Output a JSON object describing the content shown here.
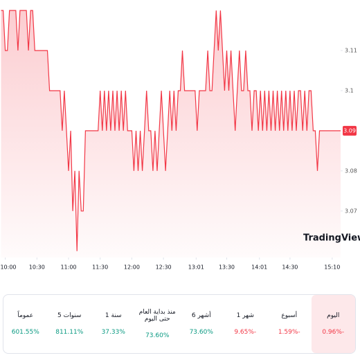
{
  "chart_data": {
    "type": "area",
    "color": "#f23645",
    "watermark": "TradingView",
    "last_value": 3.09,
    "x": [
      596,
      598,
      600,
      602,
      604,
      606,
      608,
      610,
      612,
      614,
      616,
      618,
      620,
      622,
      624,
      626,
      628,
      630,
      632,
      634,
      636,
      638,
      640,
      642,
      644,
      646,
      648,
      650,
      652,
      654,
      656,
      658,
      660,
      662,
      664,
      666,
      668,
      670,
      672,
      674,
      676,
      678,
      680,
      682,
      684,
      686,
      688,
      690,
      692,
      694,
      696,
      698,
      700,
      702,
      704,
      706,
      708,
      710,
      712,
      714,
      716,
      718,
      720,
      722,
      724,
      726,
      728,
      730,
      732,
      734,
      736,
      738,
      740,
      742,
      744,
      746,
      748,
      750,
      752,
      754,
      756,
      758,
      760,
      762,
      764,
      766,
      768,
      770,
      772,
      774,
      776,
      778,
      780,
      782,
      784,
      786,
      788,
      790,
      792,
      794,
      796,
      798,
      800,
      802,
      804,
      806,
      808,
      810,
      812,
      814,
      816,
      818,
      820,
      822,
      824,
      826,
      828,
      830,
      832,
      834,
      836,
      838,
      840,
      842,
      844,
      846,
      848,
      850,
      852,
      854,
      856,
      858,
      860,
      862,
      864,
      866,
      868,
      870,
      872,
      874,
      876,
      878,
      880,
      882,
      884,
      886,
      888,
      890,
      892,
      894,
      896,
      898,
      900,
      902,
      904,
      906,
      908,
      910,
      912,
      914,
      916,
      918
    ],
    "values": [
      3.12,
      3.12,
      3.11,
      3.11,
      3.12,
      3.12,
      3.12,
      3.12,
      3.11,
      3.12,
      3.12,
      3.12,
      3.12,
      3.11,
      3.12,
      3.12,
      3.11,
      3.11,
      3.11,
      3.11,
      3.11,
      3.11,
      3.11,
      3.1,
      3.1,
      3.1,
      3.1,
      3.1,
      3.1,
      3.09,
      3.1,
      3.09,
      3.08,
      3.09,
      3.07,
      3.08,
      3.06,
      3.08,
      3.07,
      3.07,
      3.09,
      3.09,
      3.09,
      3.09,
      3.09,
      3.09,
      3.09,
      3.1,
      3.09,
      3.1,
      3.09,
      3.1,
      3.09,
      3.1,
      3.09,
      3.1,
      3.09,
      3.1,
      3.09,
      3.1,
      3.09,
      3.09,
      3.09,
      3.08,
      3.09,
      3.08,
      3.09,
      3.08,
      3.09,
      3.1,
      3.09,
      3.09,
      3.08,
      3.09,
      3.08,
      3.09,
      3.1,
      3.09,
      3.08,
      3.09,
      3.1,
      3.09,
      3.1,
      3.09,
      3.1,
      3.1,
      3.11,
      3.1,
      3.1,
      3.1,
      3.1,
      3.1,
      3.1,
      3.09,
      3.1,
      3.1,
      3.1,
      3.1,
      3.11,
      3.1,
      3.1,
      3.11,
      3.12,
      3.11,
      3.12,
      3.11,
      3.1,
      3.11,
      3.1,
      3.11,
      3.1,
      3.09,
      3.1,
      3.11,
      3.1,
      3.1,
      3.11,
      3.1,
      3.1,
      3.09,
      3.1,
      3.1,
      3.09,
      3.1,
      3.09,
      3.1,
      3.09,
      3.1,
      3.09,
      3.1,
      3.09,
      3.1,
      3.09,
      3.1,
      3.09,
      3.1,
      3.09,
      3.1,
      3.09,
      3.1,
      3.09,
      3.1,
      3.1,
      3.09,
      3.1,
      3.09,
      3.1,
      3.1,
      3.09,
      3.09,
      3.08,
      3.09,
      3.09,
      3.09,
      3.09,
      3.09,
      3.09,
      3.09,
      3.09,
      3.09,
      3.09,
      3.09
    ],
    "xlim": [
      595,
      918
    ],
    "ylim": [
      3.0584,
      3.1226
    ],
    "xticks": [
      {
        "value": 600,
        "label": "10:00"
      },
      {
        "value": 630,
        "label": "10:30"
      },
      {
        "value": 660,
        "label": "11:00"
      },
      {
        "value": 690,
        "label": "11:30"
      },
      {
        "value": 720,
        "label": "12:00"
      },
      {
        "value": 750,
        "label": "12:30"
      },
      {
        "value": 781,
        "label": "13:01"
      },
      {
        "value": 810,
        "label": "13:30"
      },
      {
        "value": 841,
        "label": "14:01"
      },
      {
        "value": 870,
        "label": "14:30"
      },
      {
        "value": 910,
        "label": "15:10"
      }
    ],
    "yticks": [
      3.07,
      3.08,
      3.1,
      3.11
    ]
  },
  "performance": [
    {
      "label": "اليوم",
      "value": "0.96%-",
      "trend": "down",
      "selected": true
    },
    {
      "label": "أسبوع",
      "value": "1.59%-",
      "trend": "down"
    },
    {
      "label": "1 شهر",
      "value": "9.65%-",
      "trend": "down"
    },
    {
      "label": "6 أشهر",
      "value": "73.60%",
      "trend": "up"
    },
    {
      "label": "منذ بداية العام حتى اليوم",
      "value": "73.60%",
      "trend": "up"
    },
    {
      "label": "1 سنة",
      "value": "37.33%",
      "trend": "up"
    },
    {
      "label": "5 سنوات",
      "value": "811.11%",
      "trend": "up"
    },
    {
      "label": "عموماً",
      "value": "601.55%",
      "trend": "up"
    }
  ]
}
